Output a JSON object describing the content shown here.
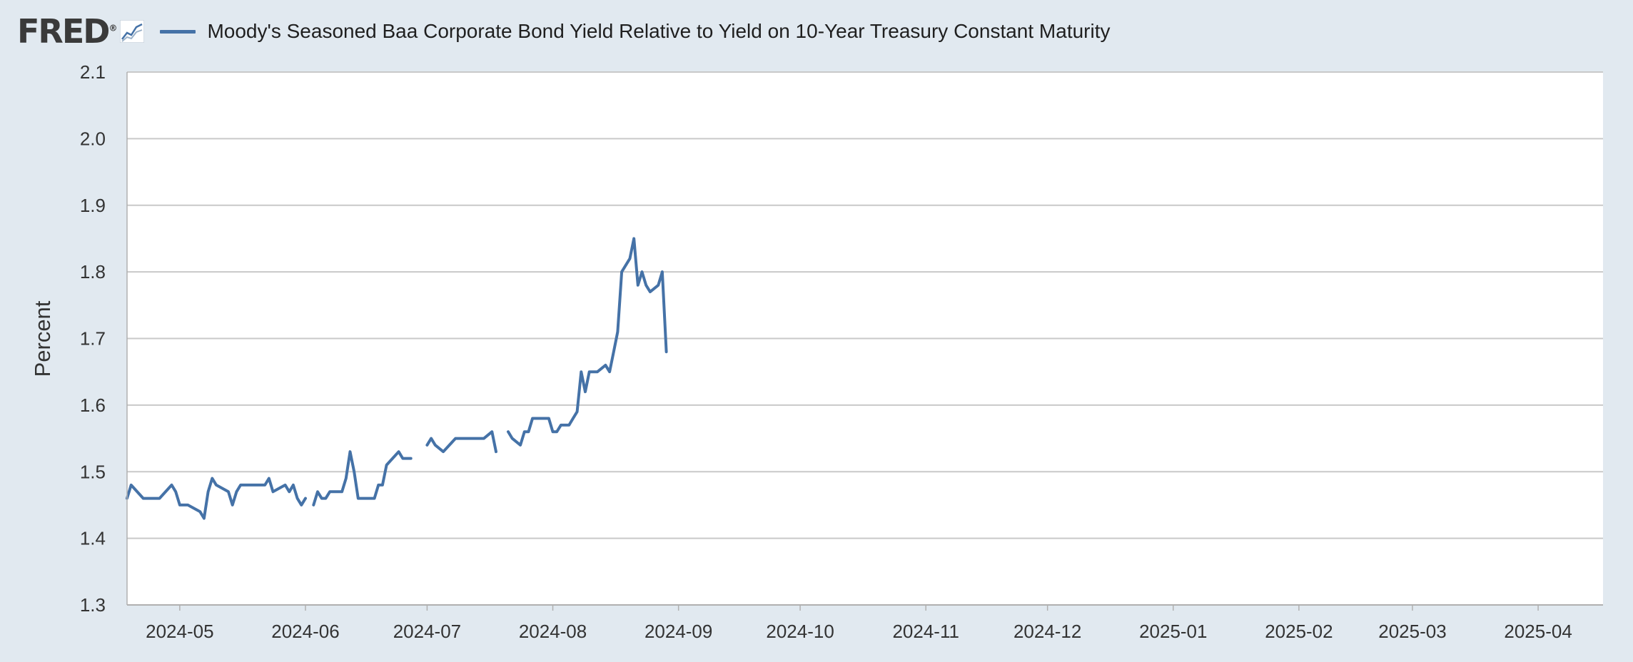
{
  "header": {
    "logo_text": "FRED",
    "logo_registered": "®",
    "logo_icon": "line-graph-icon"
  },
  "colors": {
    "background": "#e1e9f0",
    "plot_background": "#ffffff",
    "gridline": "#c9c9c9",
    "series_line": "#4572a7"
  },
  "chart_data": {
    "type": "line",
    "title": "",
    "xlabel": "",
    "ylabel": "Percent",
    "ylim": [
      1.3,
      2.1
    ],
    "yticks": [
      "1.3",
      "1.4",
      "1.5",
      "1.6",
      "1.7",
      "1.8",
      "1.9",
      "2.0",
      "2.1"
    ],
    "xlim": [
      "2024-04-18",
      "2025-04-17"
    ],
    "xticks": [
      "2024-05",
      "2024-06",
      "2024-07",
      "2024-08",
      "2024-09",
      "2024-10",
      "2024-11",
      "2024-12",
      "2025-01",
      "2025-02",
      "2025-03",
      "2025-04"
    ],
    "grid": "horizontal",
    "legend_position": "top-left",
    "series": [
      {
        "name": "Moody's Seasoned Baa Corporate Bond Yield Relative to Yield on 10-Year Treasury Constant Maturity",
        "segments": [
          [
            [
              "2024-04-18",
              1.46
            ],
            [
              "2024-04-19",
              1.48
            ],
            [
              "2024-04-22",
              1.46
            ],
            [
              "2024-04-23",
              1.46
            ],
            [
              "2024-04-24",
              1.46
            ],
            [
              "2024-04-25",
              1.46
            ],
            [
              "2024-04-26",
              1.46
            ],
            [
              "2024-04-29",
              1.48
            ],
            [
              "2024-04-30",
              1.47
            ],
            [
              "2024-05-01",
              1.45
            ],
            [
              "2024-05-02",
              1.45
            ],
            [
              "2024-05-03",
              1.45
            ],
            [
              "2024-05-06",
              1.44
            ],
            [
              "2024-05-07",
              1.43
            ],
            [
              "2024-05-08",
              1.47
            ],
            [
              "2024-05-09",
              1.49
            ],
            [
              "2024-05-10",
              1.48
            ],
            [
              "2024-05-13",
              1.47
            ],
            [
              "2024-05-14",
              1.45
            ],
            [
              "2024-05-15",
              1.47
            ],
            [
              "2024-05-16",
              1.48
            ],
            [
              "2024-05-17",
              1.48
            ],
            [
              "2024-05-20",
              1.48
            ],
            [
              "2024-05-21",
              1.48
            ],
            [
              "2024-05-22",
              1.48
            ],
            [
              "2024-05-23",
              1.49
            ],
            [
              "2024-05-24",
              1.47
            ],
            [
              "2024-05-27",
              1.48
            ],
            [
              "2024-05-28",
              1.47
            ],
            [
              "2024-05-29",
              1.48
            ],
            [
              "2024-05-30",
              1.46
            ],
            [
              "2024-05-31",
              1.45
            ],
            [
              "2024-06-01",
              1.46
            ]
          ],
          [
            [
              "2024-06-03",
              1.45
            ],
            [
              "2024-06-04",
              1.47
            ],
            [
              "2024-06-05",
              1.46
            ],
            [
              "2024-06-06",
              1.46
            ],
            [
              "2024-06-07",
              1.47
            ],
            [
              "2024-06-10",
              1.47
            ],
            [
              "2024-06-11",
              1.49
            ],
            [
              "2024-06-12",
              1.53
            ],
            [
              "2024-06-13",
              1.5
            ],
            [
              "2024-06-14",
              1.46
            ],
            [
              "2024-06-17",
              1.46
            ],
            [
              "2024-06-18",
              1.46
            ],
            [
              "2024-06-19",
              1.48
            ],
            [
              "2024-06-20",
              1.48
            ],
            [
              "2024-06-21",
              1.51
            ],
            [
              "2024-06-24",
              1.53
            ],
            [
              "2024-06-25",
              1.52
            ],
            [
              "2024-06-27",
              1.52
            ]
          ],
          [
            [
              "2024-07-01",
              1.54
            ],
            [
              "2024-07-02",
              1.55
            ],
            [
              "2024-07-03",
              1.54
            ],
            [
              "2024-07-05",
              1.53
            ],
            [
              "2024-07-08",
              1.55
            ],
            [
              "2024-07-09",
              1.55
            ],
            [
              "2024-07-10",
              1.55
            ],
            [
              "2024-07-11",
              1.55
            ],
            [
              "2024-07-12",
              1.55
            ],
            [
              "2024-07-15",
              1.55
            ],
            [
              "2024-07-17",
              1.56
            ],
            [
              "2024-07-18",
              1.53
            ]
          ],
          [
            [
              "2024-07-21",
              1.56
            ],
            [
              "2024-07-22",
              1.55
            ],
            [
              "2024-07-24",
              1.54
            ],
            [
              "2024-07-25",
              1.56
            ],
            [
              "2024-07-26",
              1.56
            ],
            [
              "2024-07-27",
              1.58
            ],
            [
              "2024-07-28",
              1.58
            ],
            [
              "2024-07-30",
              1.58
            ],
            [
              "2024-07-31",
              1.58
            ],
            [
              "2024-08-01",
              1.56
            ],
            [
              "2024-08-02",
              1.56
            ],
            [
              "2024-08-03",
              1.57
            ],
            [
              "2024-08-05",
              1.57
            ],
            [
              "2024-08-06",
              1.58
            ],
            [
              "2024-08-07",
              1.59
            ],
            [
              "2024-08-08",
              1.65
            ],
            [
              "2024-08-09",
              1.62
            ],
            [
              "2024-08-10",
              1.65
            ],
            [
              "2024-08-12",
              1.65
            ],
            [
              "2024-08-14",
              1.66
            ],
            [
              "2024-08-15",
              1.65
            ],
            [
              "2024-08-16",
              1.68
            ],
            [
              "2024-08-17",
              1.71
            ],
            [
              "2024-08-18",
              1.8
            ],
            [
              "2024-08-20",
              1.82
            ],
            [
              "2024-08-21",
              1.85
            ],
            [
              "2024-08-22",
              1.78
            ],
            [
              "2024-08-23",
              1.8
            ],
            [
              "2024-08-24",
              1.78
            ],
            [
              "2024-08-25",
              1.77
            ],
            [
              "2024-08-27",
              1.78
            ],
            [
              "2024-08-28",
              1.8
            ],
            [
              "2024-08-29",
              1.68
            ]
          ]
        ]
      }
    ]
  }
}
